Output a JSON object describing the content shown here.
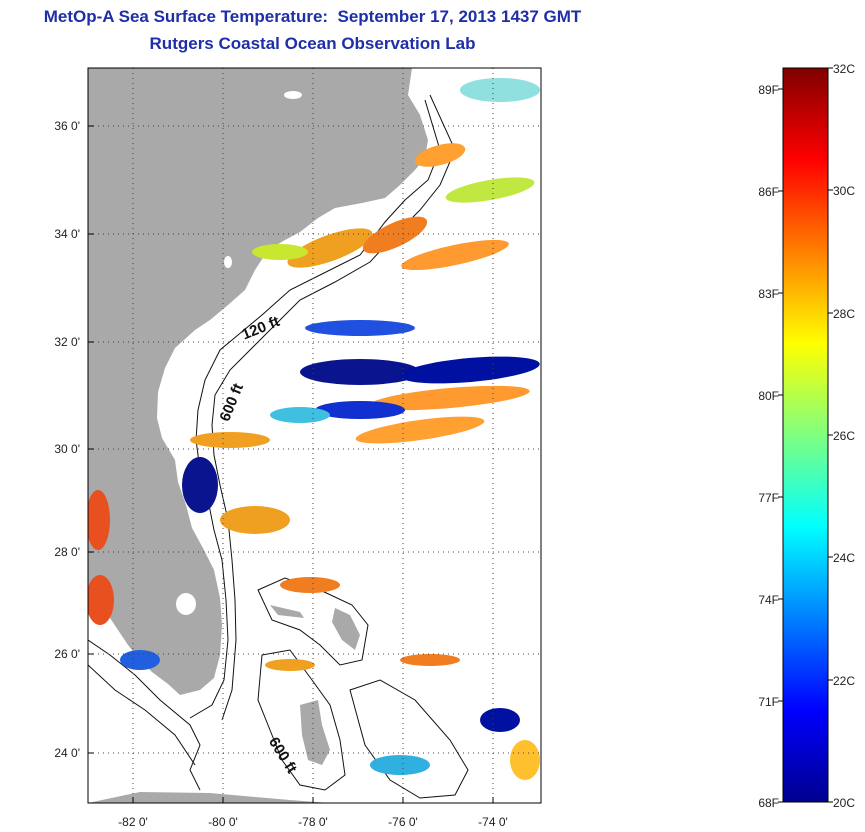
{
  "title": {
    "line1": "MetOp-A Sea Surface Temperature:  September 17, 2013 1437 GMT",
    "line2": "Rutgers Coastal Ocean Observation Lab"
  },
  "map": {
    "lat_ticks": [
      "24 0'",
      "26 0'",
      "28 0'",
      "30 0'",
      "32 0'",
      "34 0'",
      "36 0'"
    ],
    "lon_ticks": [
      "-82 0'",
      "-80 0'",
      "-78 0'",
      "-76 0'",
      "-74 0'"
    ],
    "contour_labels": [
      "120 ft",
      "600 ft",
      "600 ft"
    ],
    "colors": {
      "land": "#a9a9a9",
      "ocean_nodata": "#ffffff",
      "contour": "#111111"
    }
  },
  "colorbar": {
    "fahrenheit_labels": [
      "89F",
      "86F",
      "83F",
      "80F",
      "77F",
      "74F",
      "71F",
      "68F"
    ],
    "celsius_labels": [
      "32C",
      "30C",
      "28C",
      "26C",
      "24C",
      "22C",
      "20C"
    ],
    "range_c": [
      20,
      32
    ],
    "colormap": "jet"
  }
}
